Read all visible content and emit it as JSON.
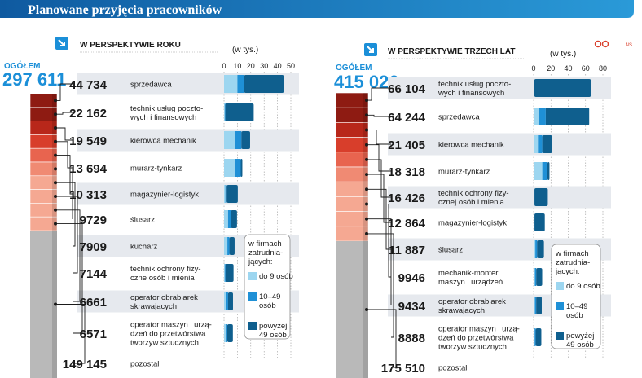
{
  "title": "Planowane przyjęcia pracowników",
  "credit": "NS",
  "unit_label": "(w tys.)",
  "total_label": "OGÓŁEM",
  "legend": {
    "title_lines": [
      "w firmach",
      "zatrudnia-",
      "jących:"
    ],
    "items": [
      {
        "label_lines": [
          "do 9 osób"
        ],
        "color": "#9dd6f0"
      },
      {
        "label_lines": [
          "10–49",
          "osób"
        ],
        "color": "#1f90d6"
      },
      {
        "label_lines": [
          "powyżej",
          "49 osób"
        ],
        "color": "#0f5f8e"
      }
    ]
  },
  "colors": {
    "title_bar": "#1b6fae",
    "bar_small": "#9dd6f0",
    "bar_mid": "#1f90d6",
    "bar_large": "#0f5f8e",
    "row_band": "#e6e9ee",
    "stack_reds": [
      "#8e1b12",
      "#b8271a",
      "#d83e2b",
      "#e8644f",
      "#f08a73",
      "#f5a892"
    ],
    "stack_grey": "#b9b9b9"
  },
  "chart_data": [
    {
      "type": "bar",
      "title": "W PERSPEKTYWIE ROKU",
      "total": "297 611",
      "xlim": [
        0,
        50
      ],
      "ticks": [
        0,
        10,
        20,
        30,
        40,
        50
      ],
      "rows": [
        {
          "value_label": "44 734",
          "name_lines": [
            "sprzedawca"
          ],
          "total": 44.7,
          "small": 10,
          "mid": 5,
          "large": 29.7
        },
        {
          "value_label": "22 162",
          "name_lines": [
            "technik usług poczto-",
            "wych i finansowych"
          ],
          "total": 22.2,
          "small": 0.5,
          "mid": 0.5,
          "large": 21.2
        },
        {
          "value_label": "19 549",
          "name_lines": [
            "kierowca mechanik"
          ],
          "total": 19.5,
          "small": 8,
          "mid": 5,
          "large": 6.5
        },
        {
          "value_label": "13 694",
          "name_lines": [
            "murarz-tynkarz"
          ],
          "total": 13.7,
          "small": 8,
          "mid": 4.5,
          "large": 1.2
        },
        {
          "value_label": "10 313",
          "name_lines": [
            "magazynier-logistyk"
          ],
          "total": 10.3,
          "small": 1,
          "mid": 1,
          "large": 8.3
        },
        {
          "value_label": "9729",
          "name_lines": [
            "ślusarz"
          ],
          "total": 9.7,
          "small": 3,
          "mid": 2,
          "large": 4.7
        },
        {
          "value_label": "7909",
          "name_lines": [
            "kucharz"
          ],
          "total": 7.9,
          "small": 2.5,
          "mid": 1.5,
          "large": 3.9
        },
        {
          "value_label": "7144",
          "name_lines": [
            "technik ochrony fizy-",
            "czne osób i mienia"
          ],
          "total": 7.1,
          "small": 0.5,
          "mid": 0.6,
          "large": 6
        },
        {
          "value_label": "6661",
          "name_lines": [
            "operator obrabiarek",
            "skrawających"
          ],
          "total": 6.7,
          "small": 1.5,
          "mid": 1.5,
          "large": 3.7
        },
        {
          "value_label": "6571",
          "name_lines": [
            "operator maszyn i urzą-",
            "dzeń do przetwórstwa",
            "tworzyw sztucznych"
          ],
          "total": 6.6,
          "small": 1.2,
          "mid": 1.2,
          "large": 4.2
        },
        {
          "value_label": "149 145",
          "name_lines": [
            "pozostali"
          ],
          "total": null,
          "small": null,
          "mid": null,
          "large": null
        }
      ]
    },
    {
      "type": "bar",
      "title": "W PERSPEKTYWIE TRZECH LAT",
      "total": "415 026",
      "xlim": [
        0,
        80
      ],
      "ticks": [
        0,
        20,
        40,
        60,
        80
      ],
      "rows": [
        {
          "value_label": "66 104",
          "name_lines": [
            "technik usług poczto-",
            "wych i finansowych"
          ],
          "total": 66.1,
          "small": 0.4,
          "mid": 0.4,
          "large": 65.3
        },
        {
          "value_label": "64 244",
          "name_lines": [
            "sprzedawca"
          ],
          "total": 64.2,
          "small": 6,
          "mid": 8,
          "large": 50.2
        },
        {
          "value_label": "21 405",
          "name_lines": [
            "kierowca mechanik"
          ],
          "total": 21.4,
          "small": 5,
          "mid": 5,
          "large": 11.4
        },
        {
          "value_label": "18 318",
          "name_lines": [
            "murarz-tynkarz"
          ],
          "total": 18.3,
          "small": 10,
          "mid": 6,
          "large": 2.3
        },
        {
          "value_label": "16 426",
          "name_lines": [
            "technik ochrony fizy-",
            "cznej osób i mienia"
          ],
          "total": 16.4,
          "small": 0.5,
          "mid": 0.5,
          "large": 15.4
        },
        {
          "value_label": "12 864",
          "name_lines": [
            "magazynier-logistyk"
          ],
          "total": 12.9,
          "small": 0.5,
          "mid": 0.5,
          "large": 11.9
        },
        {
          "value_label": "11 887",
          "name_lines": [
            "ślusarz"
          ],
          "total": 11.9,
          "small": 2,
          "mid": 2,
          "large": 7.9
        },
        {
          "value_label": "9946",
          "name_lines": [
            "mechanik-monter",
            "maszyn i urządzeń"
          ],
          "total": 9.9,
          "small": 1.5,
          "mid": 1.5,
          "large": 6.9
        },
        {
          "value_label": "9434",
          "name_lines": [
            "operator obrabiarek",
            "skrawających"
          ],
          "total": 9.4,
          "small": 1.5,
          "mid": 1.5,
          "large": 6.4
        },
        {
          "value_label": "8888",
          "name_lines": [
            "operator maszyn i urzą-",
            "dzeń do przetwórstwa",
            "tworzyw sztucznych"
          ],
          "total": 8.9,
          "small": 1.2,
          "mid": 1.2,
          "large": 6.5
        },
        {
          "value_label": "175 510",
          "name_lines": [
            "pozostali"
          ],
          "total": null,
          "small": null,
          "mid": null,
          "large": null
        }
      ]
    }
  ]
}
